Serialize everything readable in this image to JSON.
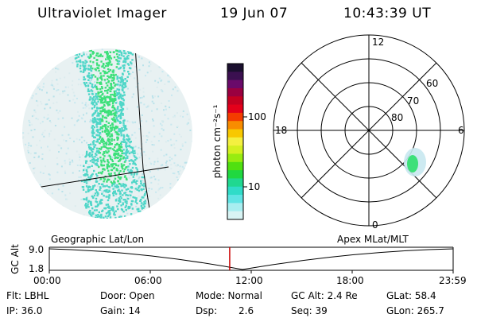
{
  "header": {
    "instrument": "Ultraviolet Imager",
    "date": "19 Jun 07",
    "time": "10:43:39 UT"
  },
  "colorbar": {
    "label": "photon cm⁻²s⁻¹",
    "ticks": [
      "100",
      "10"
    ]
  },
  "polar_plot": {
    "hour_labels": [
      "12",
      "18",
      "6",
      "0"
    ],
    "lat_labels": [
      "60",
      "70",
      "80"
    ]
  },
  "timeline": {
    "axis_label": "GC Alt",
    "y_ticks": [
      "9.0",
      "1.8"
    ],
    "left_caption": "Geographic Lat/Lon",
    "right_caption": "Apex  MLat/MLT",
    "time_ticks": [
      "00:00",
      "06:00",
      "12:00",
      "18:00",
      "23:59"
    ],
    "current_time_fraction": 0.4467
  },
  "info": {
    "filter": "Flt: LBHL",
    "ip": "IP: 36.0",
    "door": "Door: Open",
    "gain": "Gain: 14",
    "mode": "Mode: Normal",
    "dsp_label": "Dsp:",
    "dsp_value": "2.6",
    "gc_alt": "GC Alt: 2.4 Re",
    "seq": "Seq: 39",
    "glat": "GLat:  58.4",
    "glon": "GLon: 265.7"
  },
  "colors": {
    "aurora_low": "#c8e8ef",
    "aurora_mid": "#4fd6c8",
    "aurora_high": "#3de07a",
    "current_time_marker": "#cc0000"
  }
}
